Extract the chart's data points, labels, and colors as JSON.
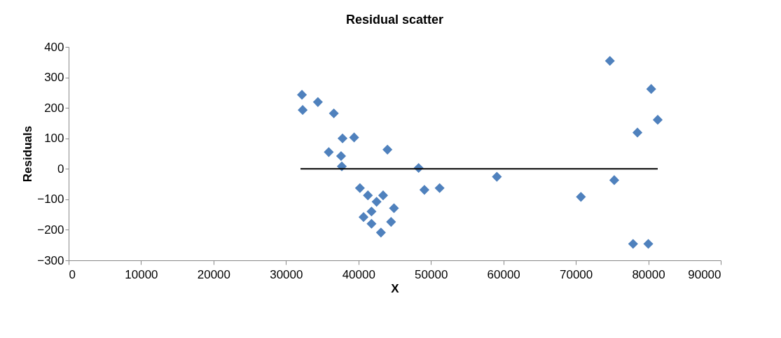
{
  "chart_data": {
    "type": "scatter",
    "title": "Residual scatter",
    "xlabel": "X",
    "ylabel": "Residuals",
    "xlim": [
      0,
      90000
    ],
    "xticks": [
      0,
      10000,
      20000,
      30000,
      40000,
      50000,
      60000,
      70000,
      80000,
      90000
    ],
    "ylim": [
      -300,
      400
    ],
    "yticks": [
      -300,
      -200,
      -100,
      0,
      100,
      200,
      300,
      400
    ],
    "grid": false,
    "series": [
      {
        "type": "scatter",
        "color": "#4f81bd",
        "marker": "diamond",
        "x": [
          32200,
          32300,
          34400,
          36600,
          37800,
          39400,
          35900,
          37600,
          37700,
          44000,
          48300,
          40200,
          41300,
          43400,
          42500,
          44900,
          41800,
          40700,
          41800,
          44500,
          43100,
          49100,
          51200,
          59100,
          70700,
          74700,
          80400,
          81300,
          78500,
          75300,
          77900,
          80000
        ],
        "values": [
          243,
          193,
          219,
          182,
          100,
          103,
          55,
          42,
          8,
          63,
          3,
          -63,
          -87,
          -87,
          -108,
          -129,
          -140,
          -158,
          -180,
          -174,
          -209,
          -69,
          -63,
          -26,
          -92,
          354,
          262,
          161,
          119,
          -37,
          -246,
          -246
        ]
      },
      {
        "type": "line",
        "color": "#000000",
        "marker": "none",
        "line_style": "solid",
        "x": [
          32000,
          81300
        ],
        "values": [
          0,
          0
        ]
      }
    ]
  }
}
